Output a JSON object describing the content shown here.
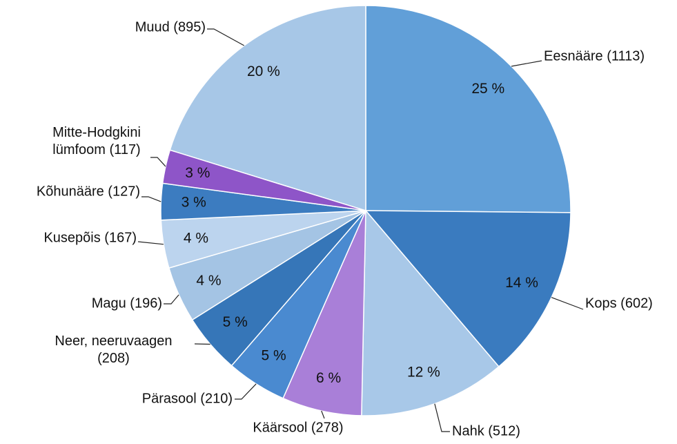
{
  "chart_data": {
    "type": "pie",
    "categories": [
      "Eesnääre",
      "Kops",
      "Nahk",
      "Käärsool",
      "Pärasool",
      "Neer, neeruvaagen",
      "Magu",
      "Kusepõis",
      "Kõhunääre",
      "Mitte-Hodgkini lümfoom",
      "Muud"
    ],
    "values": [
      1113,
      602,
      512,
      278,
      210,
      208,
      196,
      167,
      127,
      117,
      895
    ],
    "value_labels": [
      "(1113)",
      "(602)",
      "(512)",
      "(278)",
      "(210)",
      "(208)",
      "(196)",
      "(167)",
      "(127)",
      "(117)",
      "(895)"
    ],
    "percent_labels": [
      "25 %",
      "14 %",
      "12 %",
      "6 %",
      "5 %",
      "5 %",
      "4 %",
      "4 %",
      "3 %",
      "3 %",
      "20 %"
    ],
    "colors": [
      "#619fd8",
      "#3a7bbf",
      "#a8c8e8",
      "#a97fd8",
      "#4a8ad0",
      "#3676b8",
      "#a4c4e4",
      "#bcd4ee",
      "#3c7cc0",
      "#8e55c8",
      "#a7c7e7"
    ]
  }
}
